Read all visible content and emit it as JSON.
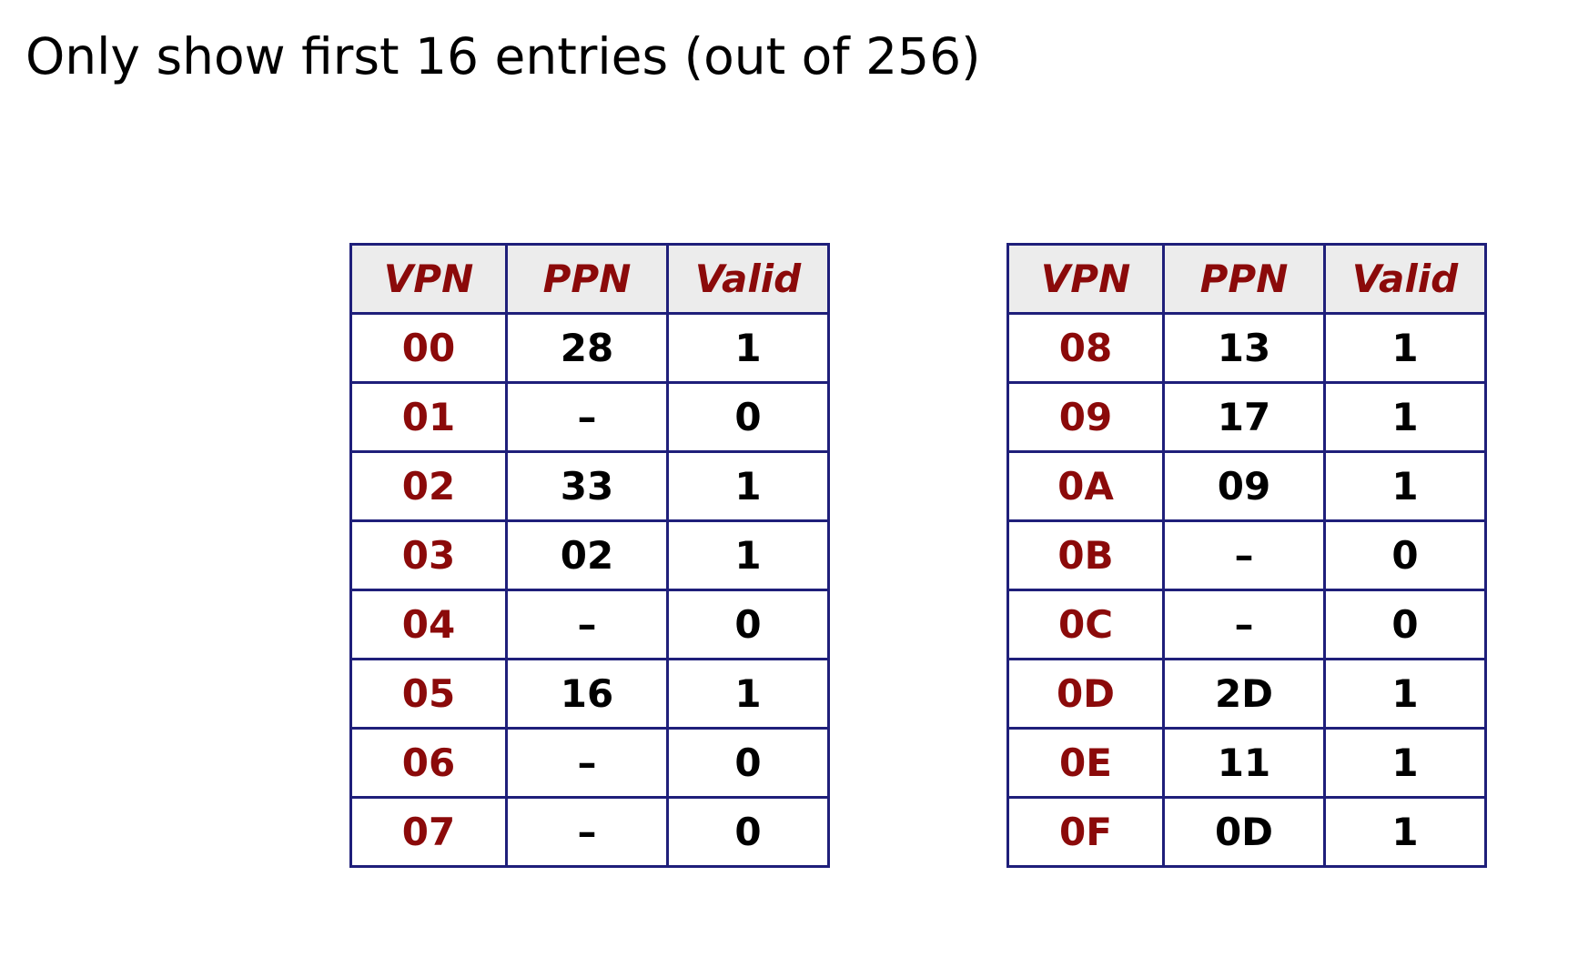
{
  "title": "Only show first 16 entries (out of 256)",
  "colors": {
    "header_text": "#8b0a0a",
    "vpn_text": "#8b0a0a",
    "value_text": "#000000",
    "border": "#1f1f7a",
    "header_background": "#ececec"
  },
  "tables": [
    {
      "headers": {
        "vpn": "VPN",
        "ppn": "PPN",
        "valid": "Valid"
      },
      "rows": [
        {
          "vpn": "00",
          "ppn": "28",
          "valid": "1"
        },
        {
          "vpn": "01",
          "ppn": "–",
          "valid": "0"
        },
        {
          "vpn": "02",
          "ppn": "33",
          "valid": "1"
        },
        {
          "vpn": "03",
          "ppn": "02",
          "valid": "1"
        },
        {
          "vpn": "04",
          "ppn": "–",
          "valid": "0"
        },
        {
          "vpn": "05",
          "ppn": "16",
          "valid": "1"
        },
        {
          "vpn": "06",
          "ppn": "–",
          "valid": "0"
        },
        {
          "vpn": "07",
          "ppn": "–",
          "valid": "0"
        }
      ]
    },
    {
      "headers": {
        "vpn": "VPN",
        "ppn": "PPN",
        "valid": "Valid"
      },
      "rows": [
        {
          "vpn": "08",
          "ppn": "13",
          "valid": "1"
        },
        {
          "vpn": "09",
          "ppn": "17",
          "valid": "1"
        },
        {
          "vpn": "0A",
          "ppn": "09",
          "valid": "1"
        },
        {
          "vpn": "0B",
          "ppn": "–",
          "valid": "0"
        },
        {
          "vpn": "0C",
          "ppn": "–",
          "valid": "0"
        },
        {
          "vpn": "0D",
          "ppn": "2D",
          "valid": "1"
        },
        {
          "vpn": "0E",
          "ppn": "11",
          "valid": "1"
        },
        {
          "vpn": "0F",
          "ppn": "0D",
          "valid": "1"
        }
      ]
    }
  ]
}
